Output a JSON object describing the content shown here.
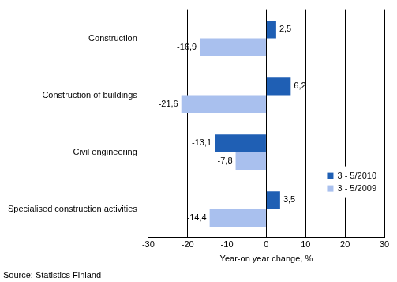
{
  "chart_data": {
    "type": "bar",
    "orientation": "horizontal",
    "categories": [
      "Construction",
      "Construction of buildings",
      "Civil engineering",
      "Specialised construction activities"
    ],
    "series": [
      {
        "name": "3 - 5/2010",
        "color": "#1f5fb4",
        "values": [
          2.5,
          6.2,
          -13.1,
          3.5
        ],
        "value_labels": [
          "2,5",
          "6,2",
          "-13,1",
          "3,5"
        ]
      },
      {
        "name": "3 - 5/2009",
        "color": "#a9c0ee",
        "values": [
          -16.9,
          -21.6,
          -7.8,
          -14.4
        ],
        "value_labels": [
          "-16,9",
          "-21,6",
          "-7,8",
          "-14,4"
        ]
      }
    ],
    "x_label": "Year-on year change, %",
    "xlim": [
      -30,
      30
    ],
    "xticks": [
      -30,
      -20,
      -10,
      0,
      10,
      20,
      30
    ],
    "grid": true,
    "legend": "bottom-right",
    "data_labels": true,
    "annotations": [
      "Source: Statistics Finland"
    ]
  }
}
